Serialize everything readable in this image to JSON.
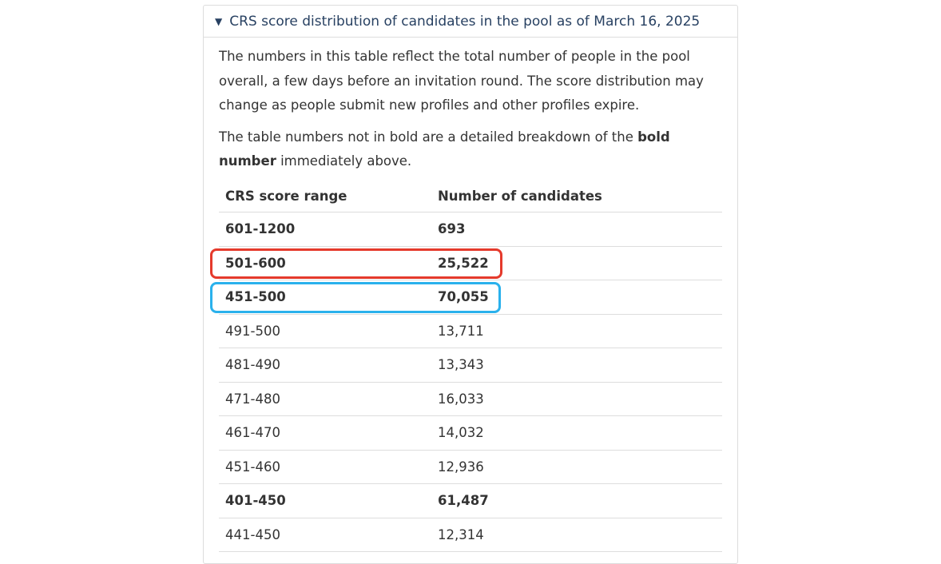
{
  "details": {
    "summary": "CRS score distribution of candidates in the pool as of March 16, 2025",
    "paragraph1": "The numbers in this table reflect the total number of people in the pool overall, a few days before an invitation round. The score distribution may change as people submit new profiles and other profiles expire.",
    "paragraph2_prefix": "The table numbers not in bold are a detailed breakdown of the ",
    "paragraph2_bold": "bold number",
    "paragraph2_suffix": " immediately above."
  },
  "table": {
    "headers": [
      "CRS score range",
      "Number of candidates"
    ],
    "rows": [
      {
        "range": "601-1200",
        "count": "693",
        "bold": true
      },
      {
        "range": "501-600",
        "count": "25,522",
        "bold": true
      },
      {
        "range": "451-500",
        "count": "70,055",
        "bold": true
      },
      {
        "range": "491-500",
        "count": "13,711",
        "bold": false
      },
      {
        "range": "481-490",
        "count": "13,343",
        "bold": false
      },
      {
        "range": "471-480",
        "count": "16,033",
        "bold": false
      },
      {
        "range": "461-470",
        "count": "14,032",
        "bold": false
      },
      {
        "range": "451-460",
        "count": "12,936",
        "bold": false
      },
      {
        "range": "401-450",
        "count": "61,487",
        "bold": true
      },
      {
        "range": "441-450",
        "count": "12,314",
        "bold": false
      }
    ]
  },
  "highlights": {
    "red_color": "#e53a2c",
    "blue_color": "#2ab1ec"
  },
  "colors": {
    "link_text": "#284162",
    "border": "#dddddd",
    "body_text": "#333333"
  }
}
